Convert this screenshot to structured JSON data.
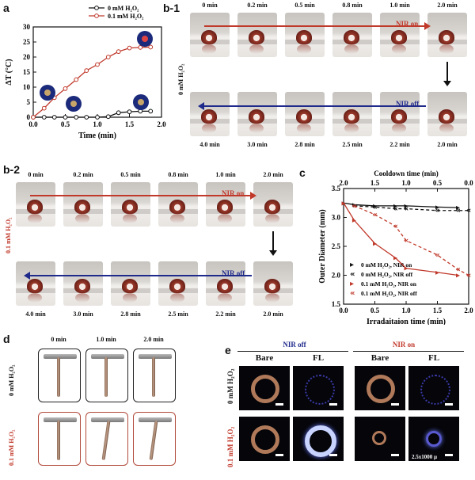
{
  "panels": {
    "a": "a",
    "b1": "b-1",
    "b2": "b-2",
    "c": "c",
    "d": "d",
    "e": "e"
  },
  "colors": {
    "red": "#c0392b",
    "blue": "#1f2a8a",
    "black": "#111111"
  },
  "chart_data": [
    {
      "type": "line",
      "panel": "a",
      "xlabel": "Time (min)",
      "ylabel": "ΔT (°C)",
      "xlim": [
        0.0,
        2.0
      ],
      "ylim": [
        0,
        30
      ],
      "xticks": [
        "0.0",
        "0.5",
        "1.0",
        "1.5",
        "2.0"
      ],
      "yticks": [
        "0",
        "5",
        "10",
        "15",
        "20",
        "25",
        "30"
      ],
      "legend_position": "top-right",
      "series": [
        {
          "name": "0 mM H2O2",
          "color": "#111111",
          "x": [
            0,
            0.17,
            0.33,
            0.5,
            0.67,
            0.83,
            1.0,
            1.17,
            1.33,
            1.5,
            1.67,
            1.83
          ],
          "y": [
            0,
            0,
            0,
            0,
            0,
            0,
            0,
            0.2,
            1.5,
            1.8,
            2.0,
            2.0
          ]
        },
        {
          "name": "0.1 mM H2O2",
          "color": "#c0392b",
          "x": [
            0,
            0.17,
            0.33,
            0.5,
            0.67,
            0.83,
            1.0,
            1.17,
            1.33,
            1.5,
            1.67,
            1.83
          ],
          "y": [
            0,
            3.0,
            6.5,
            9.5,
            12.5,
            15.5,
            17.5,
            20.0,
            21.8,
            23.0,
            23.2,
            23.3
          ]
        }
      ]
    },
    {
      "type": "line",
      "panel": "c",
      "xlabel": "Irradaitaion time (min)",
      "x2label": "Cooldown time (min)",
      "ylabel": "Outer Diameter (mm)",
      "xlim": [
        0.0,
        2.0
      ],
      "ylim": [
        1.5,
        3.5
      ],
      "xticks": [
        "0.0",
        "0.5",
        "1.0",
        "1.5",
        "2.0"
      ],
      "x2ticks": [
        "2.0",
        "1.5",
        "1.0",
        "0.5",
        "0.0"
      ],
      "yticks": [
        "1.5",
        "2.0",
        "2.5",
        "3.0",
        "3.5"
      ],
      "legend_position": "bottom-left",
      "series": [
        {
          "name": "0 mM H2O2, NIR on",
          "color": "#111111",
          "style": "solid",
          "x": [
            0,
            0.17,
            0.5,
            0.83,
            1.0,
            1.5,
            1.83
          ],
          "y": [
            3.25,
            3.22,
            3.2,
            3.2,
            3.2,
            3.18,
            3.17
          ]
        },
        {
          "name": "0 mM H2O2, NIR off",
          "color": "#111111",
          "style": "dashed",
          "x": [
            0.17,
            0.5,
            0.83,
            1.0,
            1.5,
            1.83,
            2.0
          ],
          "y": [
            3.2,
            3.18,
            3.15,
            3.15,
            3.12,
            3.12,
            3.12
          ]
        },
        {
          "name": "0.1 mM H2O2, NIR on",
          "color": "#c0392b",
          "style": "solid",
          "x": [
            0,
            0.17,
            0.5,
            0.83,
            1.0,
            1.5,
            1.83
          ],
          "y": [
            3.25,
            2.95,
            2.55,
            2.3,
            2.12,
            2.05,
            2.0
          ]
        },
        {
          "name": "0.1 mM H2O2, NIR off",
          "color": "#c0392b",
          "style": "dashed",
          "x": [
            0.17,
            0.5,
            0.83,
            1.0,
            1.5,
            1.83,
            2.0
          ],
          "y": [
            3.2,
            3.05,
            2.85,
            2.6,
            2.35,
            2.1,
            2.0
          ]
        }
      ]
    }
  ],
  "b1": {
    "top_times": [
      "0 min",
      "0.2 min",
      "0.5 min",
      "0.8 min",
      "1.0 min",
      "2.0 min"
    ],
    "bottom_times": [
      "4.0 min",
      "3.0 min",
      "2.8 min",
      "2.5 min",
      "2.2 min",
      "2.0 min"
    ],
    "side_label": "0 mM H2O2",
    "nir_on": "NIR on",
    "nir_off": "NIR off"
  },
  "b2": {
    "top_times": [
      "0 min",
      "0.2 min",
      "0.5 min",
      "0.8 min",
      "1.0 min",
      "2.0 min"
    ],
    "bottom_times": [
      "4.0 min",
      "3.0 min",
      "2.8 min",
      "2.5 min",
      "2.2 min",
      "2.0 min"
    ],
    "side_label": "0.1 mM H2O2",
    "nir_on": "NIR on",
    "nir_off": "NIR off"
  },
  "d": {
    "times": [
      "0 min",
      "1.0 min",
      "2.0 min"
    ],
    "row1_label": "0 mM H2O2",
    "row2_label": "0.1 mM H2O2"
  },
  "e": {
    "nir_off": "NIR off",
    "nir_on": "NIR on",
    "bare": "Bare",
    "fl": "FL",
    "row1_label": "0 mM H2O2",
    "row2_label": "0.1 mM H2O2",
    "scale_text": "2.5x1000 µ"
  }
}
